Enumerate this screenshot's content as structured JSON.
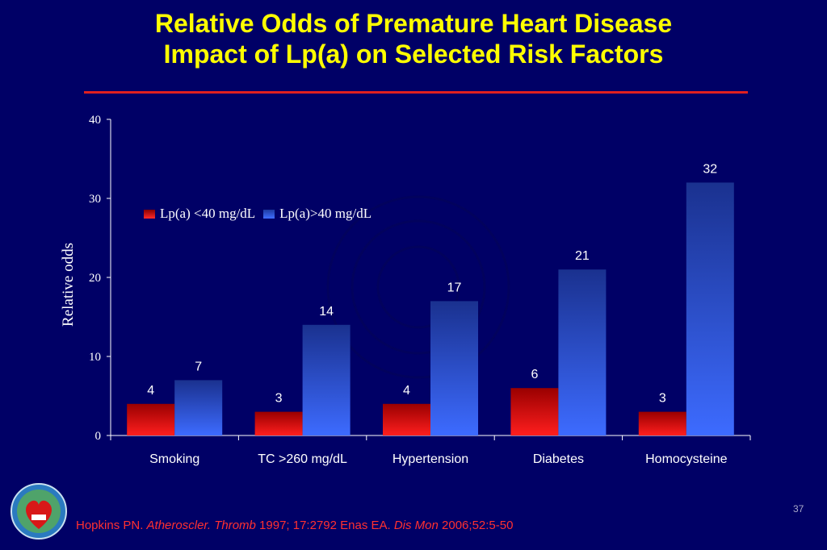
{
  "slide": {
    "title_line1": "Relative Odds of Premature Heart Disease",
    "title_line2": "Impact of Lp(a) on Selected Risk Factors",
    "page_number": "37",
    "citation": {
      "p1": "Hopkins PN. ",
      "p2": "Atheroscler. Thromb",
      "p3": " 1997; 17:2792 Enas EA.  ",
      "p4": "Dis Mon",
      "p5": " 2006;52:5-50"
    },
    "colors": {
      "background": "#000066",
      "title": "#ffff00",
      "rule": "#e02020",
      "citation": "#ff3030",
      "series_low": "#e01010",
      "series_high": "#3366ff"
    },
    "logo_icon": "cadi-globe-heart-logo"
  },
  "chart_data": {
    "type": "bar",
    "title": "",
    "xlabel": "",
    "ylabel": "Relative odds",
    "ylim": [
      0,
      40
    ],
    "yticks": [
      "0",
      "10",
      "20",
      "30",
      "40"
    ],
    "categories": [
      "Smoking",
      "TC >260 mg/dL",
      "Hypertension",
      "Diabetes",
      "Homocysteine"
    ],
    "series": [
      {
        "name": "Lp(a) <40 mg/dL",
        "values": [
          4,
          3,
          4,
          6,
          3
        ],
        "color": "#e01010"
      },
      {
        "name": "Lp(a)>40 mg/dL",
        "values": [
          7,
          14,
          17,
          21,
          32
        ],
        "color": "#3366ff"
      }
    ],
    "grid": false,
    "legend": "top-left"
  }
}
